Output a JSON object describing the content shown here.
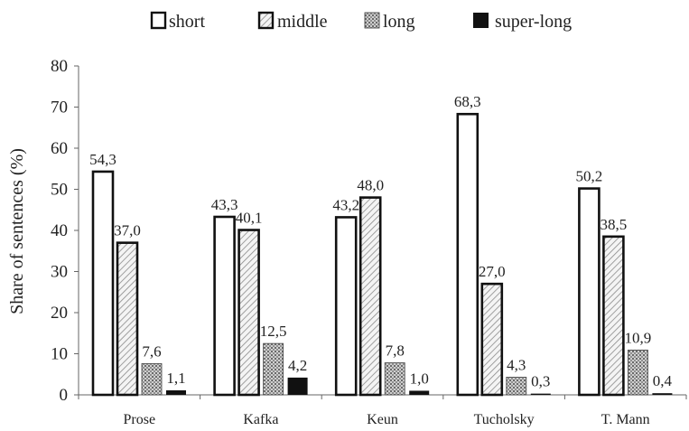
{
  "chart_data": {
    "type": "bar",
    "title": "",
    "xlabel": "",
    "ylabel": "Share of sentences (%)",
    "ylim": [
      0,
      80
    ],
    "yticks": [
      "0",
      "10",
      "20",
      "30",
      "40",
      "50",
      "60",
      "70",
      "80"
    ],
    "grid": false,
    "legend_position": "top",
    "categories": [
      "Prose",
      "Kafka",
      "Keun",
      "Tucholsky",
      "T. Mann"
    ],
    "series": [
      {
        "name": "short",
        "style": "white",
        "values": [
          54.3,
          43.3,
          43.2,
          68.3,
          50.2
        ],
        "labels": [
          "54,3",
          "43,3",
          "43,2",
          "68,3",
          "50,2"
        ]
      },
      {
        "name": "middle",
        "style": "hatch",
        "values": [
          37.0,
          40.1,
          48.0,
          27.0,
          38.5
        ],
        "labels": [
          "37,0",
          "40,1",
          "48,0",
          "27,0",
          "38,5"
        ]
      },
      {
        "name": "long",
        "style": "dotted",
        "values": [
          7.6,
          12.5,
          7.8,
          4.3,
          10.9
        ],
        "labels": [
          "7,6",
          "12,5",
          "7,8",
          "4,3",
          "10,9"
        ]
      },
      {
        "name": "super-long",
        "style": "black",
        "values": [
          1.1,
          4.2,
          1.0,
          0.3,
          0.4
        ],
        "labels": [
          "1,1",
          "4,2",
          "1,0",
          "0,3",
          "0,4"
        ]
      }
    ]
  }
}
